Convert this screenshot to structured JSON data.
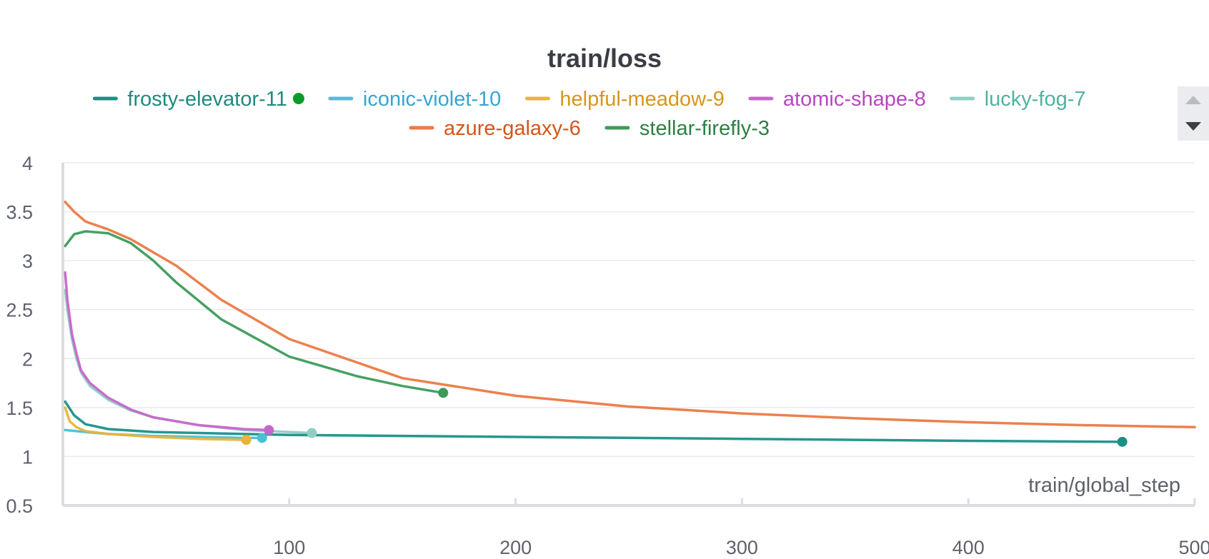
{
  "chart_data": {
    "type": "line",
    "title": "train/loss",
    "xlabel": "train/global_step",
    "ylabel": "",
    "xlim": [
      0,
      500
    ],
    "ylim": [
      0.5,
      4
    ],
    "x_ticks": [
      100,
      200,
      300,
      400,
      500
    ],
    "y_ticks": [
      0.5,
      1,
      1.5,
      2,
      2.5,
      3,
      3.5,
      4
    ],
    "grid": true,
    "legend_position": "top",
    "series": [
      {
        "name": "frosty-elevator-11",
        "color": "#1a9088",
        "legend_text_color": "#1f8a80",
        "marker_color": "#0d9a2a",
        "x": [
          1,
          5,
          10,
          20,
          40,
          60,
          100,
          150,
          200,
          300,
          400,
          468
        ],
        "y": [
          1.56,
          1.42,
          1.33,
          1.28,
          1.25,
          1.24,
          1.22,
          1.21,
          1.2,
          1.18,
          1.16,
          1.15
        ]
      },
      {
        "name": "iconic-violet-10",
        "color": "#4bbfd6",
        "legend_text_color": "#35a6d0",
        "x": [
          1,
          10,
          20,
          40,
          60,
          80,
          88
        ],
        "y": [
          1.27,
          1.25,
          1.23,
          1.21,
          1.2,
          1.19,
          1.19
        ]
      },
      {
        "name": "helpful-meadow-9",
        "color": "#eab33a",
        "legend_text_color": "#d5961c",
        "x": [
          1,
          3,
          6,
          10,
          20,
          40,
          60,
          81
        ],
        "y": [
          1.5,
          1.36,
          1.3,
          1.26,
          1.23,
          1.2,
          1.18,
          1.17
        ]
      },
      {
        "name": "atomic-shape-8",
        "color": "#c766cc",
        "legend_text_color": "#b847c0",
        "x": [
          1,
          2,
          4,
          6,
          8,
          12,
          20,
          30,
          40,
          60,
          80,
          91
        ],
        "y": [
          2.88,
          2.6,
          2.25,
          2.05,
          1.88,
          1.75,
          1.6,
          1.48,
          1.4,
          1.32,
          1.28,
          1.27
        ]
      },
      {
        "name": "lucky-fog-7",
        "color": "#8ecfc4",
        "legend_text_color": "#4fb39f",
        "x": [
          1,
          2,
          4,
          6,
          8,
          12,
          20,
          30,
          40,
          60,
          80,
          110
        ],
        "y": [
          2.7,
          2.5,
          2.2,
          2.0,
          1.86,
          1.72,
          1.58,
          1.47,
          1.4,
          1.32,
          1.27,
          1.24
        ]
      },
      {
        "name": "azure-galaxy-6",
        "color": "#ea7a45",
        "legend_text_color": "#d2561a",
        "x": [
          1,
          5,
          10,
          20,
          30,
          50,
          70,
          100,
          150,
          200,
          250,
          300,
          350,
          400,
          450,
          500
        ],
        "y": [
          3.6,
          3.5,
          3.4,
          3.32,
          3.22,
          2.95,
          2.6,
          2.2,
          1.8,
          1.62,
          1.51,
          1.44,
          1.39,
          1.35,
          1.32,
          1.3
        ]
      },
      {
        "name": "stellar-firefly-3",
        "color": "#3d9b5a",
        "legend_text_color": "#2f7f45",
        "x": [
          1,
          5,
          10,
          20,
          30,
          40,
          50,
          70,
          100,
          130,
          150,
          168
        ],
        "y": [
          3.15,
          3.27,
          3.3,
          3.28,
          3.18,
          3.0,
          2.78,
          2.4,
          2.02,
          1.82,
          1.72,
          1.65
        ]
      }
    ]
  }
}
